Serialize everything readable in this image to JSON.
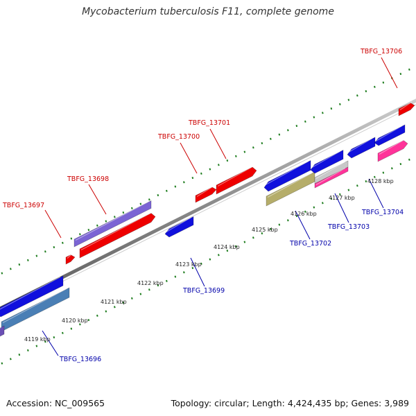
{
  "title": "Mycobacterium tuberculosis F11, complete genome",
  "footer": {
    "accession": "Accession: NC_009565",
    "summary": "Topology: circular; Length: 4,424,435 bp; Genes: 3,989"
  },
  "colors": {
    "forward_label": "#cc0000",
    "reverse_label": "#0000aa",
    "backbone": "#8a8a8a",
    "tick_marks": "#1e7d1e"
  },
  "scale": {
    "unit": "kbp",
    "ticks": [
      {
        "label": "4119 kbp"
      },
      {
        "label": "4120 kbp"
      },
      {
        "label": "4121 kbp"
      },
      {
        "label": "4122 kbp"
      },
      {
        "label": "4123 kbp"
      },
      {
        "label": "4124 kbp"
      },
      {
        "label": "4125 kbp"
      },
      {
        "label": "4126 kbp"
      },
      {
        "label": "4127 kbp"
      },
      {
        "label": "4128 kbp"
      }
    ]
  },
  "genes": [
    {
      "label": "TBFG_13697",
      "strand": "forward"
    },
    {
      "label": "TBFG_13698",
      "strand": "forward"
    },
    {
      "label": "TBFG_13700",
      "strand": "forward"
    },
    {
      "label": "TBFG_13701",
      "strand": "forward"
    },
    {
      "label": "TBFG_13706",
      "strand": "forward"
    },
    {
      "label": "TBFG_13696",
      "strand": "reverse"
    },
    {
      "label": "TBFG_13699",
      "strand": "reverse"
    },
    {
      "label": "TBFG_13702",
      "strand": "reverse"
    },
    {
      "label": "TBFG_13703",
      "strand": "reverse"
    },
    {
      "label": "TBFG_13704",
      "strand": "reverse"
    }
  ]
}
